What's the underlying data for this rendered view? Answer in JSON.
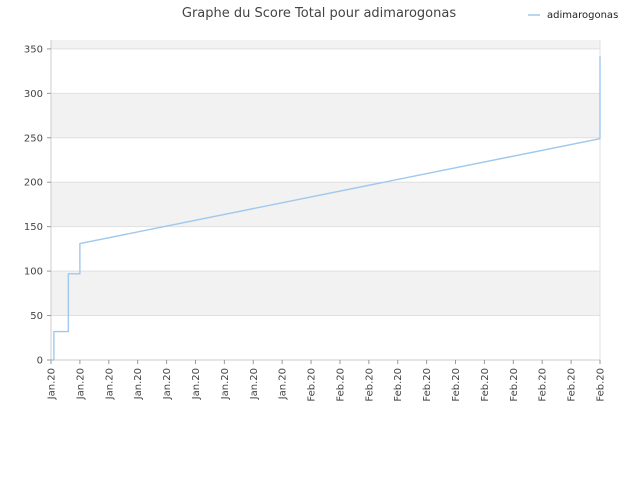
{
  "chart_data": {
    "type": "line",
    "title": "Graphe du Score Total pour adimarogonas",
    "xlabel": "",
    "ylabel": "",
    "ylim": [
      0,
      360
    ],
    "yticks": [
      0,
      50,
      100,
      150,
      200,
      250,
      300,
      350
    ],
    "xtick_labels": [
      "Jan.20",
      "Jan.20",
      "Jan.20",
      "Jan.20",
      "Jan.20",
      "Jan.20",
      "Jan.20",
      "Jan.20",
      "Jan.20",
      "Feb.20",
      "Feb.20",
      "Feb.20",
      "Feb.20",
      "Feb.20",
      "Feb.20",
      "Feb.20",
      "Feb.20",
      "Feb.20",
      "Feb.20",
      "Feb.20"
    ],
    "grid": "horizontal alternating bands",
    "legend_position": "top-right",
    "colors": {
      "line": "#a0c8ec",
      "band": "#f2f2f2",
      "grid": "#e0e0e0"
    },
    "series": [
      {
        "name": "adimarogonas",
        "x": [
          0,
          0.1,
          0.1,
          0.6,
          0.6,
          1,
          1,
          19,
          19,
          19
        ],
        "y": [
          0,
          0,
          32,
          32,
          97,
          97,
          131,
          249,
          249,
          342
        ]
      }
    ]
  }
}
